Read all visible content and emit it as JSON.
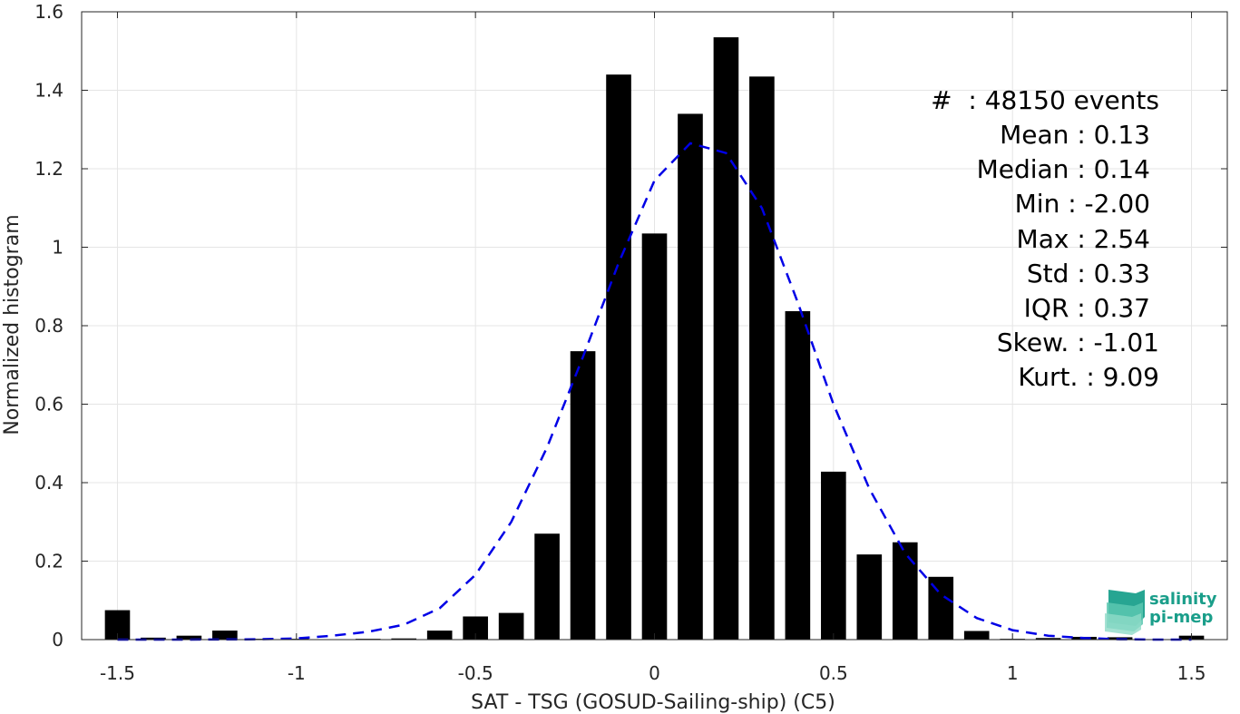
{
  "chart_data": {
    "type": "bar",
    "xlabel": "SAT - TSG (GOSUD-Sailing-ship) (C5)",
    "ylabel": "Normalized histogram",
    "xlim": [
      -1.6,
      1.6
    ],
    "ylim": [
      0,
      1.6
    ],
    "xticks": [
      -1.5,
      -1,
      -0.5,
      0,
      0.5,
      1,
      1.5
    ],
    "xtick_labels": [
      "-1.5",
      "-1",
      "-0.5",
      "0",
      "0.5",
      "1",
      "1.5"
    ],
    "yticks": [
      0,
      0.2,
      0.4,
      0.6,
      0.8,
      1,
      1.2,
      1.4,
      1.6
    ],
    "ytick_labels": [
      "0",
      "0.2",
      "0.4",
      "0.6",
      "0.8",
      "1",
      "1.2",
      "1.4",
      "1.6"
    ],
    "grid": true,
    "bar_color": "#000000",
    "bar_width": 0.07,
    "bars": [
      {
        "x": -1.5,
        "y": 0.075
      },
      {
        "x": -1.4,
        "y": 0.005
      },
      {
        "x": -1.3,
        "y": 0.01
      },
      {
        "x": -1.2,
        "y": 0.023
      },
      {
        "x": -1.1,
        "y": 0.002
      },
      {
        "x": -1.0,
        "y": 0.002
      },
      {
        "x": -0.9,
        "y": 0.001
      },
      {
        "x": -0.8,
        "y": 0.002
      },
      {
        "x": -0.7,
        "y": 0.003
      },
      {
        "x": -0.6,
        "y": 0.023
      },
      {
        "x": -0.5,
        "y": 0.059
      },
      {
        "x": -0.4,
        "y": 0.068
      },
      {
        "x": -0.3,
        "y": 0.27
      },
      {
        "x": -0.2,
        "y": 0.735
      },
      {
        "x": -0.1,
        "y": 1.44
      },
      {
        "x": 0.0,
        "y": 1.035
      },
      {
        "x": 0.1,
        "y": 1.34
      },
      {
        "x": 0.2,
        "y": 1.535
      },
      {
        "x": 0.3,
        "y": 1.435
      },
      {
        "x": 0.4,
        "y": 0.837
      },
      {
        "x": 0.5,
        "y": 0.428
      },
      {
        "x": 0.6,
        "y": 0.217
      },
      {
        "x": 0.7,
        "y": 0.248
      },
      {
        "x": 0.8,
        "y": 0.16
      },
      {
        "x": 0.9,
        "y": 0.022
      },
      {
        "x": 1.0,
        "y": 0.002
      },
      {
        "x": 1.1,
        "y": 0.004
      },
      {
        "x": 1.2,
        "y": 0.007
      },
      {
        "x": 1.3,
        "y": 0.006
      },
      {
        "x": 1.5,
        "y": 0.01
      }
    ],
    "fit_curve": {
      "style": "dashed",
      "color": "#0000e6",
      "points": [
        [
          -1.5,
          0.0
        ],
        [
          -1.3,
          0.0
        ],
        [
          -1.1,
          0.001
        ],
        [
          -1.0,
          0.003
        ],
        [
          -0.9,
          0.01
        ],
        [
          -0.8,
          0.02
        ],
        [
          -0.7,
          0.038
        ],
        [
          -0.6,
          0.08
        ],
        [
          -0.5,
          0.165
        ],
        [
          -0.4,
          0.3
        ],
        [
          -0.3,
          0.49
        ],
        [
          -0.2,
          0.72
        ],
        [
          -0.1,
          0.96
        ],
        [
          0.0,
          1.17
        ],
        [
          0.1,
          1.265
        ],
        [
          0.2,
          1.24
        ],
        [
          0.3,
          1.1
        ],
        [
          0.4,
          0.86
        ],
        [
          0.5,
          0.6
        ],
        [
          0.6,
          0.385
        ],
        [
          0.7,
          0.22
        ],
        [
          0.8,
          0.115
        ],
        [
          0.9,
          0.055
        ],
        [
          1.0,
          0.024
        ],
        [
          1.1,
          0.01
        ],
        [
          1.2,
          0.004
        ],
        [
          1.3,
          0.001
        ],
        [
          1.4,
          0.0
        ],
        [
          1.5,
          0.0
        ]
      ]
    }
  },
  "stats": {
    "events": "#  : 48150 events",
    "mean": "Mean : 0.13",
    "median": "Median : 0.14",
    "min": "Min : -2.00",
    "max": "Max : 2.54",
    "std": "Std : 0.33",
    "iqr": "IQR : 0.37",
    "skew": "Skew. : -1.01",
    "kurt": "Kurt. : 9.09"
  },
  "logo": {
    "line1": "salinity",
    "line2": "pi-mep",
    "color": "#1a9e8a"
  }
}
